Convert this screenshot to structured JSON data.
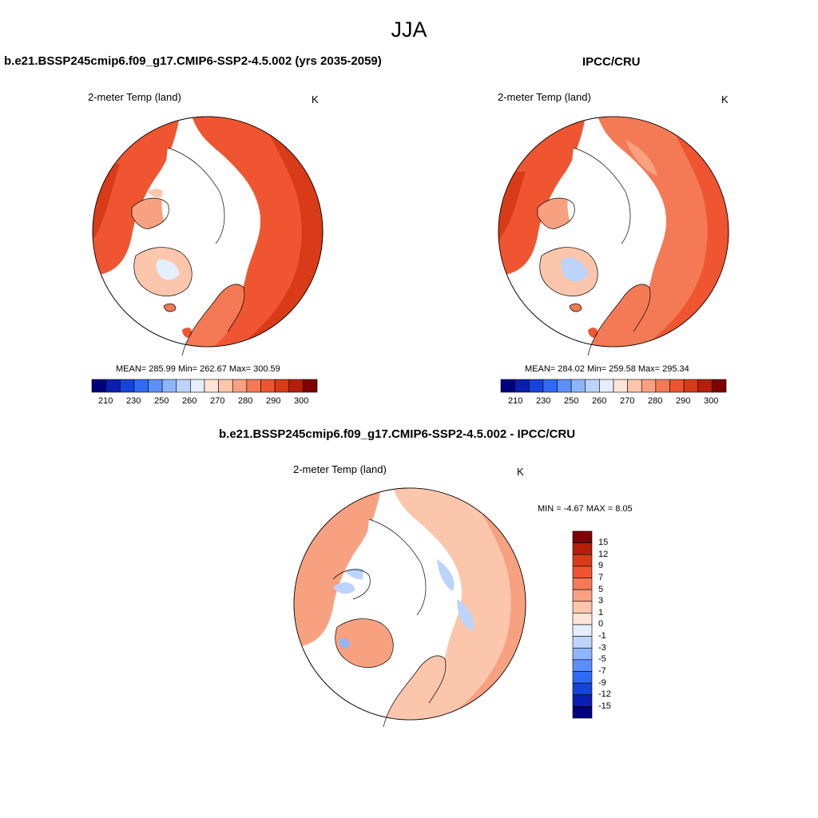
{
  "title": "JJA",
  "panel_left": {
    "header": "b.e21.BSSP245cmip6.f09_g17.CMIP6-SSP2-4.5.002 (yrs 2035-2059)",
    "variable": "2-meter Temp (land)",
    "units": "K",
    "stats": "MEAN= 285.99  Min= 262.67  Max= 300.59",
    "colorbar_labels": [
      "210",
      "230",
      "250",
      "260",
      "270",
      "280",
      "290",
      "300"
    ]
  },
  "panel_right": {
    "header": "IPCC/CRU",
    "variable": "2-meter Temp (land)",
    "units": "K",
    "stats": "MEAN= 284.02  Min= 259.58  Max= 295.34",
    "colorbar_labels": [
      "210",
      "230",
      "250",
      "260",
      "270",
      "280",
      "290",
      "300"
    ]
  },
  "panel_diff": {
    "header": "b.e21.BSSP245cmip6.f09_g17.CMIP6-SSP2-4.5.002 - IPCC/CRU",
    "variable": "2-meter Temp (land)",
    "units": "K",
    "stats": "MIN =  -4.67 MAX =   8.05",
    "colorbar_labels": [
      "15",
      "12",
      "9",
      "7",
      "5",
      "3",
      "1",
      "0",
      "-1",
      "-3",
      "-5",
      "-7",
      "-9",
      "-12",
      "-15"
    ]
  },
  "colors": {
    "abs_scale": [
      "#00007f",
      "#0a1fb0",
      "#1643dc",
      "#2f6af5",
      "#5b8ff7",
      "#8fb5f9",
      "#bcd4fb",
      "#e4eefc",
      "#fde5d6",
      "#fbc6ac",
      "#f7a180",
      "#f37a55",
      "#ee5530",
      "#d93a17",
      "#b41e0b",
      "#7f0000"
    ],
    "diff_scale": [
      "#7f0000",
      "#b41e0b",
      "#d93a17",
      "#ee5530",
      "#f37a55",
      "#f7a180",
      "#fbc6ac",
      "#fde5d6",
      "#e4eefc",
      "#bcd4fb",
      "#8fb5f9",
      "#5b8ff7",
      "#2f6af5",
      "#1643dc",
      "#0a1fb0",
      "#00007f"
    ]
  }
}
